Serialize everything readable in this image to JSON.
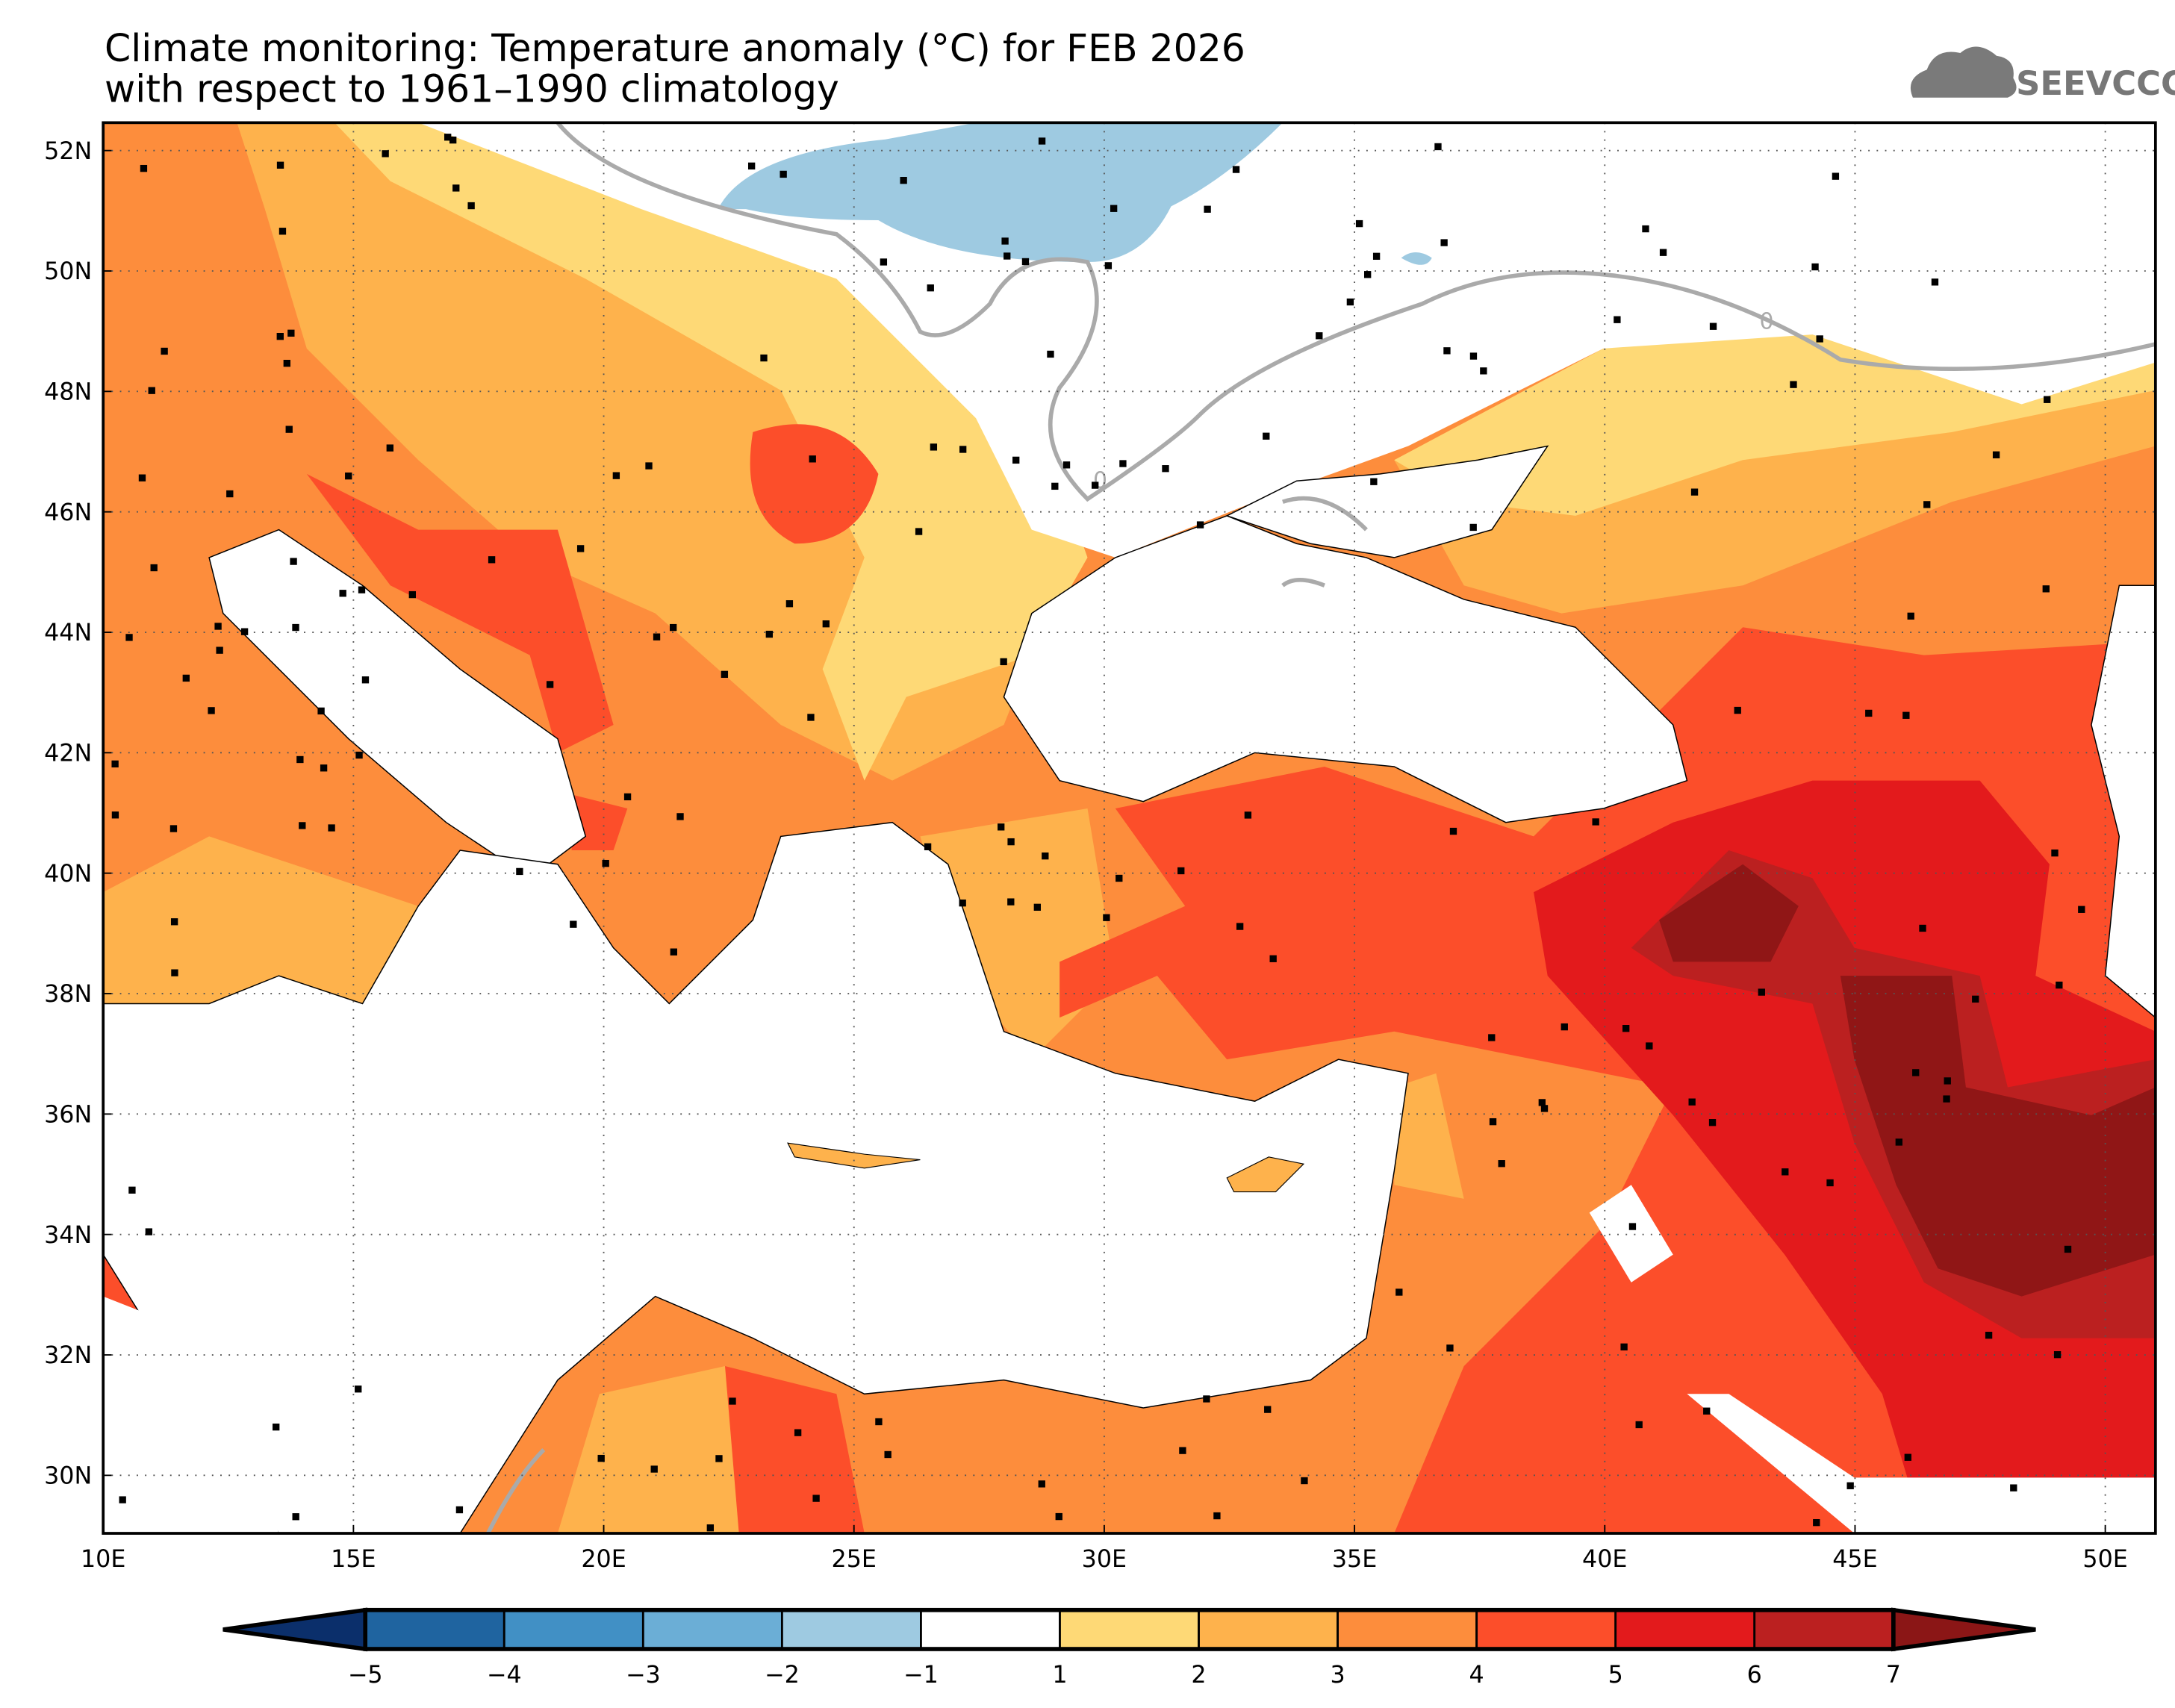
{
  "title": {
    "line1": "Climate monitoring: Temperature anomaly (°C) for FEB 2026",
    "line2": "with respect to 1961–1990 climatology"
  },
  "logo": {
    "text": "SEEVCCC",
    "icon": "cloud-icon"
  },
  "map": {
    "lat_ticks": [
      "52N",
      "50N",
      "48N",
      "46N",
      "44N",
      "42N",
      "40N",
      "38N",
      "36N",
      "34N",
      "32N",
      "30N"
    ],
    "lon_ticks": [
      "10E",
      "15E",
      "20E",
      "25E",
      "30E",
      "35E",
      "40E",
      "45E",
      "50E"
    ],
    "contour_label": "0",
    "colors": {
      "white": "#ffffff",
      "y1": "#fed976",
      "y2": "#feb24c",
      "o3": "#fd8d3c",
      "r4": "#fc4e2a",
      "r5": "#e31a1c",
      "r6": "#bd1f21",
      "r7": "#901616",
      "b1": "#9ecae1",
      "b2": "#6baed6",
      "contour": "#aaaaaa"
    }
  },
  "colorbar": {
    "labels": [
      "−5",
      "−4",
      "−3",
      "−2",
      "−1",
      "1",
      "2",
      "3",
      "4",
      "5",
      "6",
      "7"
    ],
    "colors": [
      "#1f64a0",
      "#4190c5",
      "#6baed6",
      "#9ecae1",
      "#ffffff",
      "#fed976",
      "#feb24c",
      "#fd8d3c",
      "#fc4e2a",
      "#e31a1c",
      "#bb2020"
    ],
    "low_arrow_color": "#0b2f6b",
    "high_arrow_color": "#8b1616"
  }
}
